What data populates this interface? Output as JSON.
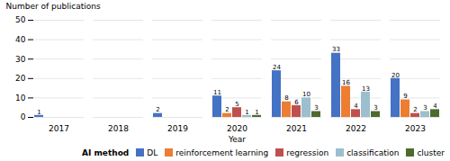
{
  "chart_data": {
    "type": "bar",
    "categories": [
      "2017",
      "2018",
      "2019",
      "2020",
      "2021",
      "2022",
      "2023"
    ],
    "series": [
      {
        "name": "DL",
        "color": "#4472C4",
        "values": [
          1,
          0,
          2,
          11,
          24,
          33,
          20
        ]
      },
      {
        "name": "reinforcement learning",
        "color": "#ED7D31",
        "values": [
          0,
          0,
          0,
          2,
          8,
          16,
          9
        ]
      },
      {
        "name": "regression",
        "color": "#C0504D",
        "values": [
          0,
          0,
          0,
          5,
          6,
          4,
          2
        ]
      },
      {
        "name": "classification",
        "color": "#9BBFCE",
        "values": [
          0,
          0,
          0,
          1,
          10,
          13,
          3
        ]
      },
      {
        "name": "cluster",
        "color": "#4E6B2E",
        "values": [
          0,
          0,
          0,
          1,
          3,
          3,
          4
        ]
      }
    ],
    "ylim": [
      0,
      50
    ],
    "yticks": [
      0,
      10,
      20,
      30,
      40,
      50
    ],
    "ylabel": "Number of publications",
    "xlabel": "Year",
    "legend_title": "AI method",
    "legend": "lower right",
    "grid": true,
    "data_labels": true
  }
}
